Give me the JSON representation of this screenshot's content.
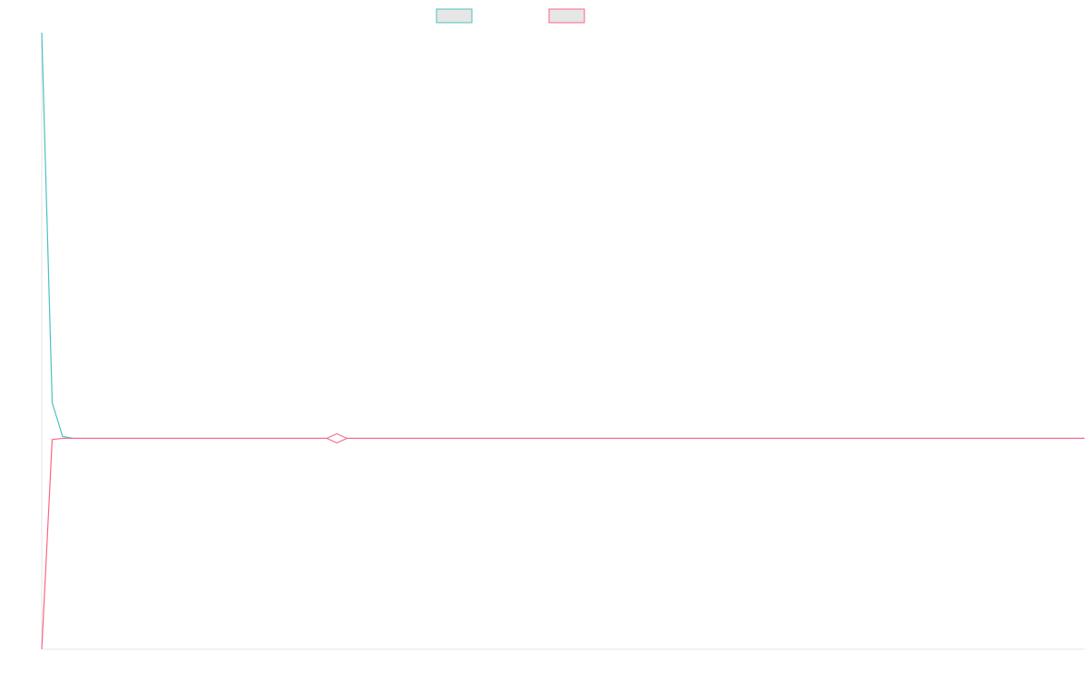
{
  "chart_data": {
    "type": "line",
    "title": "",
    "xlabel": "",
    "ylabel": "",
    "grid": false,
    "legend": {
      "placement": "top-center"
    },
    "x": [
      0,
      0.5,
      1,
      2,
      3,
      4,
      5,
      10,
      15,
      20,
      25,
      30,
      35,
      40,
      45,
      50,
      55,
      60,
      65,
      70,
      75,
      80,
      85,
      90,
      95,
      100
    ],
    "series": [
      {
        "color": "#4bc0c0",
        "values": [
          1.0,
          0.7,
          0.4,
          0.345,
          0.342,
          0.342,
          0.342,
          0.342,
          0.342,
          0.342,
          0.342,
          0.342,
          0.342,
          0.342,
          0.342,
          0.342,
          0.342,
          0.342,
          0.342,
          0.342,
          0.342,
          0.342,
          0.342,
          0.342,
          0.342,
          0.342
        ]
      },
      {
        "color": "#ff6384",
        "values": [
          0.0,
          0.17,
          0.34,
          0.342,
          0.342,
          0.342,
          0.342,
          0.342,
          0.342,
          0.342,
          0.342,
          0.342,
          0.342,
          0.342,
          0.342,
          0.342,
          0.342,
          0.342,
          0.342,
          0.342,
          0.342,
          0.342,
          0.342,
          0.342,
          0.342,
          0.342
        ]
      }
    ],
    "markers": [
      {
        "series": 0,
        "x": 28.3,
        "y": 0.342
      },
      {
        "series": 1,
        "x": 28.3,
        "y": 0.342
      }
    ],
    "xlim": [
      0,
      100
    ],
    "ylim": [
      0,
      1
    ]
  }
}
